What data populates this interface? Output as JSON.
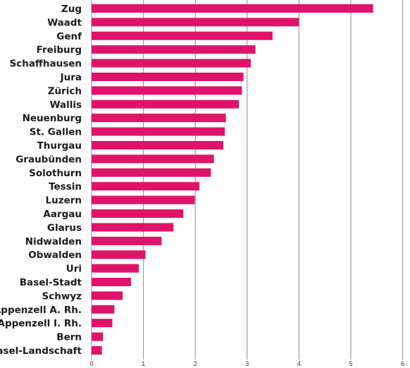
{
  "chart_data": {
    "type": "bar",
    "orientation": "horizontal",
    "title": "",
    "xlabel": "",
    "ylabel": "",
    "xlim": [
      0,
      6
    ],
    "x_ticks": [
      "0",
      "1",
      "2",
      "3",
      "4",
      "5",
      "6"
    ],
    "grid": "vertical",
    "legend": "none",
    "bar_color": "#e0136a",
    "categories": [
      "Zug",
      "Waadt",
      "Genf",
      "Freiburg",
      "Schaffhausen",
      "Jura",
      "Zürich",
      "Wallis",
      "Neuenburg",
      "St. Gallen",
      "Thurgau",
      "Graubünden",
      "Solothurn",
      "Tessin",
      "Luzern",
      "Aargau",
      "Glarus",
      "Nidwalden",
      "Obwalden",
      "Uri",
      "Basel-Stadt",
      "Schwyz",
      "Appenzell A. Rh.",
      "Appenzell I. Rh.",
      "Bern",
      "Basel-Landschaft"
    ],
    "values": [
      5.43,
      4.0,
      3.49,
      3.16,
      3.07,
      2.93,
      2.9,
      2.84,
      2.59,
      2.57,
      2.54,
      2.36,
      2.3,
      2.08,
      1.99,
      1.77,
      1.58,
      1.35,
      1.04,
      0.91,
      0.76,
      0.6,
      0.44,
      0.4,
      0.22,
      0.2
    ]
  }
}
